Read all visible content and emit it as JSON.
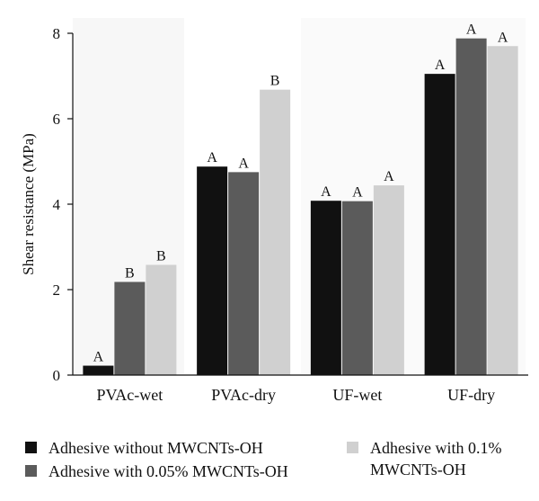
{
  "chart_data": {
    "type": "bar",
    "categories": [
      "PVAc-wet",
      "PVAc-dry",
      "UF-wet",
      "UF-dry"
    ],
    "series": [
      {
        "name": "Adhesive without MWCNTs-OH",
        "color": "#111111",
        "values": [
          0.22,
          4.88,
          4.08,
          7.05
        ],
        "labels": [
          "A",
          "A",
          "A",
          "A"
        ]
      },
      {
        "name": "Adhesive with 0.05% MWCNTs-OH",
        "color": "#5b5b5b",
        "values": [
          2.18,
          4.75,
          4.07,
          7.88
        ],
        "labels": [
          "B",
          "A",
          "A",
          "A"
        ]
      },
      {
        "name": "Adhesive with 0.1% MWCNTs-OH",
        "color": "#d0d0d0",
        "values": [
          2.58,
          6.68,
          4.44,
          7.7
        ],
        "labels": [
          "B",
          "B",
          "A",
          "A"
        ]
      }
    ],
    "yticks": [
      "0",
      "2",
      "4",
      "6",
      "8"
    ],
    "ylabel": "Shear resistance (MPa)",
    "xlabel": "",
    "title": "",
    "ylim": [
      0,
      8
    ],
    "grid": false,
    "legend_position": "bottom"
  },
  "legend": {
    "items": [
      {
        "label": "Adhesive without MWCNTs-OH",
        "color": "#111111"
      },
      {
        "label": "Adhesive with 0.05% MWCNTs-OH",
        "color": "#5b5b5b"
      },
      {
        "label": "Adhesive with 0.1%\nMWCNTs-OH",
        "color": "#d0d0d0"
      }
    ]
  }
}
